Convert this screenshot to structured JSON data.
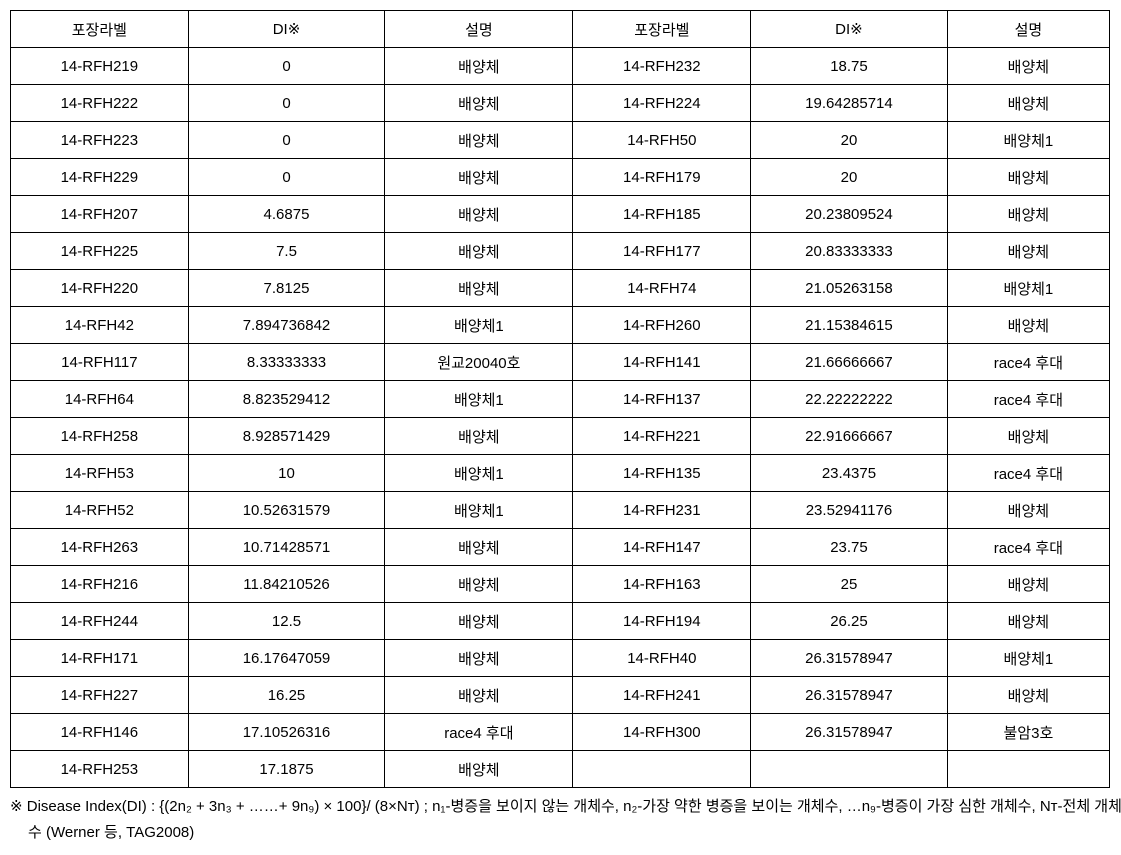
{
  "headers": {
    "c1": "포장라벨",
    "c2": "DI※",
    "c3": "설명",
    "c4": "포장라벨",
    "c5": "DI※",
    "c6": "설명"
  },
  "rows": [
    {
      "a": "14-RFH219",
      "b": "0",
      "c": "배양체",
      "d": "14-RFH232",
      "e": "18.75",
      "f": "배양체"
    },
    {
      "a": "14-RFH222",
      "b": "0",
      "c": "배양체",
      "d": "14-RFH224",
      "e": "19.64285714",
      "f": "배양체"
    },
    {
      "a": "14-RFH223",
      "b": "0",
      "c": "배양체",
      "d": "14-RFH50",
      "e": "20",
      "f": "배양체1"
    },
    {
      "a": "14-RFH229",
      "b": "0",
      "c": "배양체",
      "d": "14-RFH179",
      "e": "20",
      "f": "배양체"
    },
    {
      "a": "14-RFH207",
      "b": "4.6875",
      "c": "배양체",
      "d": "14-RFH185",
      "e": "20.23809524",
      "f": "배양체"
    },
    {
      "a": "14-RFH225",
      "b": "7.5",
      "c": "배양체",
      "d": "14-RFH177",
      "e": "20.83333333",
      "f": "배양체"
    },
    {
      "a": "14-RFH220",
      "b": "7.8125",
      "c": "배양체",
      "d": "14-RFH74",
      "e": "21.05263158",
      "f": "배양체1"
    },
    {
      "a": "14-RFH42",
      "b": "7.894736842",
      "c": "배양체1",
      "d": "14-RFH260",
      "e": "21.15384615",
      "f": "배양체"
    },
    {
      "a": "14-RFH117",
      "b": "8.33333333",
      "c": "원교20040호",
      "d": "14-RFH141",
      "e": "21.66666667",
      "f": "race4 후대"
    },
    {
      "a": "14-RFH64",
      "b": "8.823529412",
      "c": "배양체1",
      "d": "14-RFH137",
      "e": "22.22222222",
      "f": "race4 후대"
    },
    {
      "a": "14-RFH258",
      "b": "8.928571429",
      "c": "배양체",
      "d": "14-RFH221",
      "e": "22.91666667",
      "f": "배양체"
    },
    {
      "a": "14-RFH53",
      "b": "10",
      "c": "배양체1",
      "d": "14-RFH135",
      "e": "23.4375",
      "f": "race4 후대"
    },
    {
      "a": "14-RFH52",
      "b": "10.52631579",
      "c": "배양체1",
      "d": "14-RFH231",
      "e": "23.52941176",
      "f": "배양체"
    },
    {
      "a": "14-RFH263",
      "b": "10.71428571",
      "c": "배양체",
      "d": "14-RFH147",
      "e": "23.75",
      "f": "race4 후대"
    },
    {
      "a": "14-RFH216",
      "b": "11.84210526",
      "c": "배양체",
      "d": "14-RFH163",
      "e": "25",
      "f": "배양체"
    },
    {
      "a": "14-RFH244",
      "b": "12.5",
      "c": "배양체",
      "d": "14-RFH194",
      "e": "26.25",
      "f": "배양체"
    },
    {
      "a": "14-RFH171",
      "b": "16.17647059",
      "c": "배양체",
      "d": "14-RFH40",
      "e": "26.31578947",
      "f": "배양체1"
    },
    {
      "a": "14-RFH227",
      "b": "16.25",
      "c": "배양체",
      "d": "14-RFH241",
      "e": "26.31578947",
      "f": "배양체"
    },
    {
      "a": "14-RFH146",
      "b": "17.10526316",
      "c": "race4 후대",
      "d": "14-RFH300",
      "e": "26.31578947",
      "f": "불암3호"
    },
    {
      "a": "14-RFH253",
      "b": "17.1875",
      "c": "배양체",
      "d": "",
      "e": "",
      "f": ""
    }
  ],
  "footnote": "※ Disease Index(DI) : {(2n₂ + 3n₃ + ……+ 9n₉) × 100}/ (8×Nᴛ) ; n₁-병증을 보이지 않는 개체수, n₂-가장 약한 병증을 보이는 개체수, …n₉-병증이 가장 심한 개체수, Nᴛ-전체 개체수 (Werner 등, TAG2008)"
}
